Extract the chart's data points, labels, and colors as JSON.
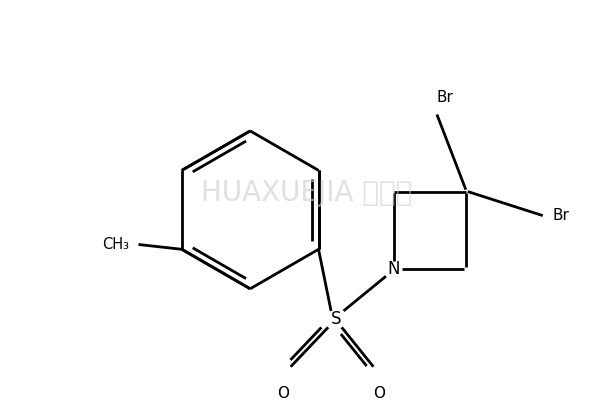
{
  "background_color": "#ffffff",
  "line_color": "#000000",
  "line_width": 2.0,
  "watermark_text": "HUAXUEJIA 化学加",
  "watermark_color": "#cccccc",
  "watermark_fontsize": 20,
  "figsize": [
    6.13,
    4.01
  ],
  "dpi": 100,
  "xlim": [
    0,
    613
  ],
  "ylim": [
    0,
    401
  ]
}
